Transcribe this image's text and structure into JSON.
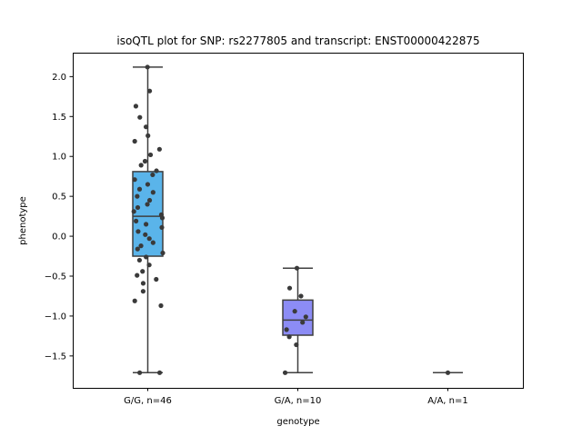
{
  "chart_data": {
    "type": "box",
    "title": "isoQTL plot for SNP: rs2277805 and transcript: ENST00000422875",
    "xlabel": "genotype",
    "ylabel": "phenotype",
    "ylim": [
      -1.9,
      2.3
    ],
    "yticks": [
      -1.5,
      -1.0,
      -0.5,
      0.0,
      0.5,
      1.0,
      1.5,
      2.0
    ],
    "ytick_labels": [
      "−1.5",
      "−1.0",
      "−0.5",
      "0.0",
      "0.5",
      "1.0",
      "1.5",
      "2.0"
    ],
    "grid": false,
    "categories": [
      "G/G, n=46",
      "G/A, n=10",
      "A/A, n=1"
    ],
    "boxes": [
      {
        "category": "G/G, n=46",
        "color": "#5ab4ea",
        "whisker_low": -1.71,
        "q1": -0.25,
        "median": 0.25,
        "q3": 0.81,
        "whisker_high": 2.12
      },
      {
        "category": "G/A, n=10",
        "color": "#8c8cf5",
        "whisker_low": -1.71,
        "q1": -1.24,
        "median": -1.05,
        "q3": -0.8,
        "whisker_high": -0.4
      },
      {
        "category": "A/A, n=1",
        "color": "#c896e6",
        "whisker_low": -1.71,
        "q1": -1.71,
        "median": -1.71,
        "q3": -1.71,
        "whisker_high": -1.71
      }
    ],
    "points": [
      {
        "category": "G/G, n=46",
        "values": [
          2.12,
          1.82,
          1.63,
          1.49,
          1.37,
          1.26,
          1.19,
          1.09,
          1.02,
          0.94,
          0.89,
          0.82,
          0.77,
          0.71,
          0.65,
          0.59,
          0.55,
          0.5,
          0.45,
          0.4,
          0.36,
          0.31,
          0.27,
          0.23,
          0.19,
          0.15,
          0.11,
          0.06,
          0.02,
          -0.03,
          -0.08,
          -0.12,
          -0.16,
          -0.21,
          -0.26,
          -0.3,
          -0.36,
          -0.44,
          -0.49,
          -0.54,
          -0.59,
          -0.69,
          -0.81,
          -0.87,
          -1.71,
          -1.71
        ]
      },
      {
        "category": "G/A, n=10",
        "values": [
          -0.4,
          -0.65,
          -0.75,
          -0.94,
          -1.01,
          -1.08,
          -1.17,
          -1.26,
          -1.36,
          -1.71
        ]
      },
      {
        "category": "A/A, n=1",
        "values": [
          -1.71
        ]
      }
    ]
  }
}
